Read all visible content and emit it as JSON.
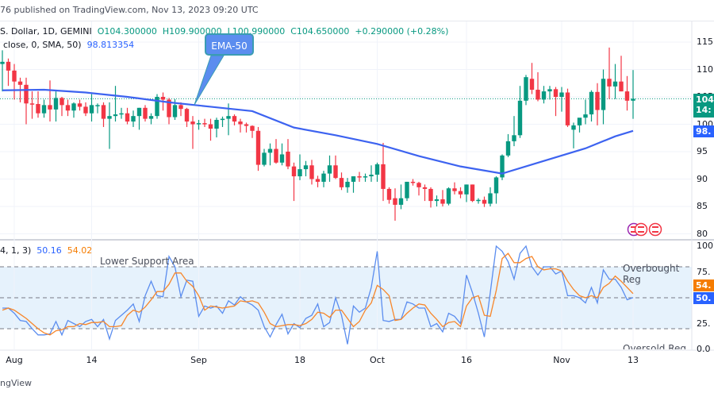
{
  "header": {
    "published": "76 published on TradingView.com, Nov 13, 2023 09:20 UTC"
  },
  "legend": {
    "symbol": "S. Dollar, 1D, GEMINI",
    "open": "O104.300000",
    "high": "H109.900000",
    "low": "L100.990000",
    "close": "C104.650000",
    "change": "+0.290000 (+0.28%)",
    "ma_params": "close, 0, SMA, 50)",
    "ma_value": "98.813354"
  },
  "callout": "EMA-50",
  "price_axis": {
    "ticks": [
      "115",
      "110",
      "105",
      "100",
      "95",
      "90",
      "85",
      "80"
    ],
    "last_badge": "104",
    "countdown_badge": "14:",
    "ema_badge": "98."
  },
  "rsi": {
    "params": "4, 1, 3)",
    "k_value": "50.16",
    "d_value": "54.02",
    "ticks": [
      "100",
      "75.",
      "25.",
      "0.0"
    ],
    "k_badge": "50.",
    "d_badge": "54.",
    "labels": {
      "lower": "Lower Support Area",
      "overbought": "Overbought Reg",
      "oversold": "Oversold Reg"
    }
  },
  "footer": "ngView",
  "colors": {
    "up": "#089981",
    "down": "#f23645",
    "ema": "#3d63f0",
    "k": "#5b8def",
    "d": "#f7862a",
    "band": "#e6f2fc"
  },
  "chart_data": [
    {
      "type": "candlestick",
      "ylim": [
        80,
        115
      ],
      "x_ticks": [
        [
          "Aug",
          "08-01"
        ],
        [
          "14",
          "08-14"
        ],
        [
          "Sep",
          "09-01"
        ],
        [
          "18",
          "09-18"
        ],
        [
          "Oct",
          "10-01"
        ],
        [
          "16",
          "10-16"
        ],
        [
          "Nov",
          "11-01"
        ],
        [
          "13",
          "11-13"
        ]
      ],
      "ohlc": [
        [
          "07-30",
          111,
          113.5,
          106,
          111.4
        ],
        [
          "07-31",
          111.4,
          112,
          107,
          109.8
        ],
        [
          "08-01",
          109.8,
          111,
          104.5,
          107.8
        ],
        [
          "08-02",
          107.8,
          108.5,
          104,
          107.2
        ],
        [
          "08-03",
          107.2,
          108.5,
          100,
          103.8
        ],
        [
          "08-04",
          103.8,
          106,
          101,
          103.7
        ],
        [
          "08-05",
          103.7,
          106,
          101.2,
          102
        ],
        [
          "08-06",
          102,
          104.5,
          101.2,
          103.5
        ],
        [
          "08-07",
          103.5,
          108,
          100.5,
          102.7
        ],
        [
          "08-08",
          102.7,
          106,
          100.5,
          104.8
        ],
        [
          "08-09",
          104.8,
          105,
          101.5,
          103.5
        ],
        [
          "08-10",
          103.5,
          104.5,
          101.5,
          102.5
        ],
        [
          "08-11",
          102.5,
          104,
          101.2,
          103.8
        ],
        [
          "08-12",
          103.8,
          104.5,
          102.5,
          103.2
        ],
        [
          "08-13",
          103.2,
          104,
          101.5,
          102
        ],
        [
          "08-14",
          102,
          105.5,
          100.5,
          103.5
        ],
        [
          "08-15",
          103.5,
          103.8,
          102,
          103.5
        ],
        [
          "08-16",
          103.5,
          104,
          99.5,
          101
        ],
        [
          "08-17",
          101,
          104,
          95.5,
          101.5
        ],
        [
          "08-18",
          101.5,
          107,
          100.5,
          101.8
        ],
        [
          "08-19",
          101.8,
          103,
          101,
          102
        ],
        [
          "08-20",
          102,
          103,
          100,
          100.5
        ],
        [
          "08-21",
          100.5,
          102.5,
          99.5,
          101.5
        ],
        [
          "08-22",
          101.5,
          103,
          99,
          103
        ],
        [
          "08-23",
          103,
          103.5,
          100.5,
          101
        ],
        [
          "08-24",
          101,
          102,
          100,
          101.5
        ],
        [
          "08-25",
          101.5,
          105.5,
          101,
          105
        ],
        [
          "08-26",
          105,
          105.8,
          102.5,
          104.5
        ],
        [
          "08-27",
          104.5,
          104.8,
          100,
          101.3
        ],
        [
          "08-28",
          101.3,
          104.6,
          100.8,
          103.5
        ],
        [
          "08-29",
          103.5,
          104,
          101.5,
          102.8
        ],
        [
          "08-30",
          102.8,
          103,
          99.5,
          100.5
        ],
        [
          "08-31",
          100.5,
          101.5,
          95.5,
          100
        ],
        [
          "09-01",
          100,
          100.8,
          99,
          100.2
        ],
        [
          "09-02",
          100.2,
          101,
          99.5,
          100
        ],
        [
          "09-03",
          100,
          101,
          97,
          99.2
        ],
        [
          "09-04",
          99.2,
          101.2,
          97.6,
          100.8
        ],
        [
          "09-05",
          100.8,
          101.4,
          99.5,
          101
        ],
        [
          "09-06",
          101,
          103.8,
          98,
          101.5
        ],
        [
          "09-07",
          101.5,
          101.8,
          99.8,
          100.5
        ],
        [
          "09-08",
          100.5,
          101,
          98.5,
          100
        ],
        [
          "09-09",
          100,
          100.3,
          98.5,
          99.7
        ],
        [
          "09-10",
          99.7,
          99.8,
          97.5,
          98.8
        ],
        [
          "09-11",
          98.8,
          99.5,
          91.5,
          92.6
        ],
        [
          "09-12",
          92.6,
          95.5,
          92.3,
          94.8
        ],
        [
          "09-13",
          94.8,
          96.5,
          92.5,
          95.5
        ],
        [
          "09-14",
          95.5,
          97.3,
          92.8,
          93
        ],
        [
          "09-15",
          93,
          96.5,
          92.5,
          94.5
        ],
        [
          "09-16",
          95,
          97.3,
          91.8,
          92.3
        ],
        [
          "09-17",
          92.3,
          93,
          86,
          90.5
        ],
        [
          "09-18",
          90.5,
          94.5,
          89.8,
          91.8
        ],
        [
          "09-19",
          91.8,
          93.3,
          90.5,
          92.5
        ],
        [
          "09-20",
          92.5,
          93.5,
          89,
          90
        ],
        [
          "09-21",
          90,
          90.6,
          88.5,
          89.5
        ],
        [
          "09-22",
          89.5,
          91.5,
          88.5,
          91
        ],
        [
          "09-23",
          91,
          94.3,
          89.5,
          92.5
        ],
        [
          "09-24",
          92.5,
          94.3,
          90,
          90.2
        ],
        [
          "09-25",
          90.2,
          91.2,
          88,
          88.5
        ],
        [
          "09-26",
          88.5,
          90.2,
          87.5,
          89.5
        ],
        [
          "09-27",
          89.5,
          90.5,
          87.5,
          90.5
        ],
        [
          "09-28",
          90.5,
          91.3,
          89.5,
          90.3
        ],
        [
          "09-29",
          90.3,
          91,
          89.5,
          90.5
        ],
        [
          "09-30",
          90.5,
          92.5,
          89.5,
          90.8
        ],
        [
          "10-01",
          90.8,
          93,
          89.5,
          92.7
        ],
        [
          "10-02",
          92.7,
          96.6,
          86,
          88.2
        ],
        [
          "10-03",
          88.2,
          88.5,
          85.5,
          86.2
        ],
        [
          "10-04",
          86.5,
          88.3,
          82.4,
          85.3
        ],
        [
          "10-05",
          85.3,
          89,
          84.5,
          86.5
        ],
        [
          "10-06",
          86.5,
          89.5,
          86,
          89.5
        ],
        [
          "10-07",
          89.5,
          90,
          88.8,
          89.3
        ],
        [
          "10-08",
          89.3,
          89.5,
          87,
          88.5
        ],
        [
          "10-09",
          88.5,
          89,
          86,
          88.2
        ],
        [
          "10-10",
          88.2,
          88.5,
          84.8,
          86
        ],
        [
          "10-11",
          86,
          87,
          85,
          86.3
        ],
        [
          "10-12",
          86.3,
          88,
          85,
          85.5
        ],
        [
          "10-13",
          85.5,
          88.5,
          85.2,
          88.3
        ],
        [
          "10-14",
          88.3,
          89.4,
          87.2,
          87.8
        ],
        [
          "10-15",
          87.8,
          88.5,
          86.5,
          87.2
        ],
        [
          "10-16",
          87.2,
          89,
          85.8,
          89
        ],
        [
          "10-17",
          89,
          89,
          85.8,
          86
        ],
        [
          "10-18",
          86,
          86.5,
          85.5,
          86.2
        ],
        [
          "10-19",
          86.2,
          86.8,
          84.9,
          85.5
        ],
        [
          "10-20",
          85.5,
          88.5,
          85,
          87.4
        ],
        [
          "10-21",
          87.4,
          90.5,
          85.5,
          90.3
        ],
        [
          "10-22",
          90.3,
          94.5,
          89.8,
          94.3
        ],
        [
          "10-23",
          94.3,
          98.2,
          94,
          96.9
        ],
        [
          "10-24",
          96.9,
          101.5,
          96,
          98
        ],
        [
          "10-25",
          98,
          107,
          97.5,
          104.3
        ],
        [
          "10-26",
          104.3,
          109,
          103.5,
          108.6
        ],
        [
          "10-27",
          108.3,
          111.2,
          105.5,
          106.3
        ],
        [
          "10-28",
          106.3,
          109.5,
          104.2,
          104.5
        ],
        [
          "10-29",
          104.5,
          107,
          103.8,
          106
        ],
        [
          "10-30",
          106,
          107,
          104.5,
          106.4
        ],
        [
          "10-31",
          106.4,
          106.8,
          101.5,
          105
        ],
        [
          "11-01",
          105,
          106.8,
          102.3,
          105.8
        ],
        [
          "11-02",
          105.8,
          106.5,
          99.5,
          99.8
        ],
        [
          "11-03",
          99,
          100.3,
          95.6,
          99.8
        ],
        [
          "11-04",
          99.8,
          101,
          98.5,
          101.2
        ],
        [
          "11-05",
          101.2,
          104.5,
          100,
          101.8
        ],
        [
          "11-06",
          101.8,
          106.2,
          100.5,
          105.9
        ],
        [
          "11-07",
          105.9,
          107.5,
          99.8,
          102.6
        ],
        [
          "11-08",
          102.6,
          110,
          100,
          108.3
        ],
        [
          "11-09",
          108.3,
          114,
          104.6,
          106.9
        ],
        [
          "11-10",
          106.9,
          111,
          104.6,
          107.8
        ],
        [
          "11-11",
          107.8,
          112.5,
          106,
          106
        ],
        [
          "11-12",
          106,
          108.8,
          102.5,
          104.3
        ],
        [
          "11-13",
          104.3,
          109.9,
          100.99,
          104.65
        ]
      ],
      "ema50": [
        [
          "07-30",
          106.2
        ],
        [
          "08-06",
          106.3
        ],
        [
          "08-13",
          105.8
        ],
        [
          "08-20",
          105.0
        ],
        [
          "08-27",
          104.0
        ],
        [
          "09-03",
          103.2
        ],
        [
          "09-10",
          102.4
        ],
        [
          "09-17",
          99.4
        ],
        [
          "09-24",
          98.0
        ],
        [
          "10-01",
          96.4
        ],
        [
          "10-08",
          94.2
        ],
        [
          "10-15",
          92.3
        ],
        [
          "10-22",
          91.0
        ],
        [
          "10-29",
          93.3
        ],
        [
          "11-05",
          95.6
        ],
        [
          "11-10",
          97.8
        ],
        [
          "11-13",
          98.8
        ]
      ]
    },
    {
      "type": "line",
      "ylim": [
        0,
        100
      ],
      "bands": [
        20,
        50,
        80
      ],
      "series": [
        {
          "name": "K",
          "values": [
            40,
            40,
            35,
            28,
            27,
            20,
            14,
            14,
            15,
            27,
            14,
            28,
            25,
            22,
            27,
            29,
            22,
            29,
            10,
            28,
            33,
            38,
            44,
            27,
            52,
            66,
            52,
            51,
            90,
            80,
            51,
            67,
            66,
            32,
            42,
            40,
            42,
            35,
            47,
            43,
            51,
            46,
            43,
            38,
            22,
            12,
            24,
            34,
            15,
            25,
            21,
            30,
            33,
            44,
            22,
            26,
            50,
            33,
            5,
            42,
            36,
            40,
            60,
            95,
            28,
            27,
            29,
            29,
            46,
            44,
            40,
            40,
            22,
            25,
            17,
            35,
            32,
            25,
            72,
            55,
            35,
            12,
            55,
            100,
            95,
            85,
            68,
            93,
            100,
            80,
            72,
            80,
            80,
            73,
            76,
            52,
            52,
            50,
            45,
            60,
            45,
            77,
            68,
            68,
            60,
            48,
            50.16
          ]
        },
        {
          "name": "D",
          "values": [
            38,
            40,
            38,
            34,
            30,
            25,
            20,
            16,
            14,
            18,
            19,
            22,
            22,
            25,
            24,
            26,
            26,
            27,
            22,
            22,
            23,
            33,
            38,
            36,
            41,
            48,
            56,
            56,
            63,
            74,
            74,
            66,
            61,
            52,
            38,
            42,
            41,
            40,
            41,
            42,
            47,
            46,
            47,
            45,
            36,
            25,
            22,
            23,
            24,
            24,
            23,
            25,
            29,
            36,
            35,
            31,
            38,
            38,
            30,
            22,
            27,
            38,
            45,
            62,
            58,
            52,
            28,
            29,
            35,
            40,
            44,
            43,
            35,
            29,
            22,
            26,
            27,
            22,
            42,
            50,
            52,
            33,
            32,
            57,
            88,
            93,
            84,
            84,
            88,
            90,
            80,
            77,
            78,
            78,
            76,
            66,
            58,
            52,
            50,
            52,
            50,
            60,
            64,
            71,
            66,
            60,
            54.02
          ]
        }
      ]
    }
  ]
}
